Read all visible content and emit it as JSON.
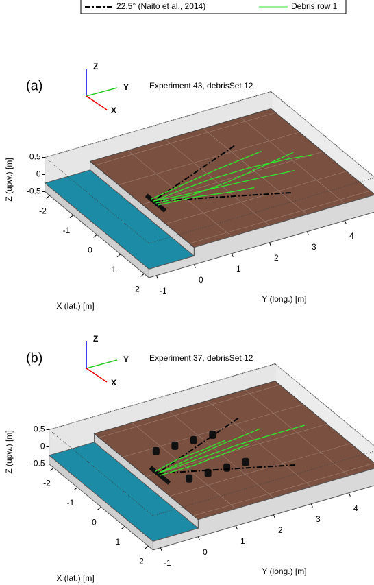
{
  "chart_data": [
    {
      "type": "line3d",
      "panel_label": "(a)",
      "title": "Experiment 43, debrisSet 12",
      "xlabel": "X (lat.) [m]",
      "ylabel": "Y (long.) [m]",
      "zlabel": "Z (upw.) [m]",
      "triad": [
        "Z",
        "Y",
        "X"
      ],
      "xlim": [
        -2.2,
        2.2
      ],
      "ylim": [
        -1.2,
        4.8
      ],
      "zlim": [
        -0.5,
        0.5
      ],
      "xticks": [
        -2,
        -1,
        0,
        1,
        2
      ],
      "yticks": [
        -1,
        0,
        1,
        2,
        3,
        4
      ],
      "zticks": [
        -0.5,
        0,
        0.5
      ],
      "grid": true,
      "series": [
        {
          "name": "22.5° (Naito et al., 2014)",
          "color": "#000000",
          "dash": "dashdot",
          "x": [
            -1.2,
            0,
            1.2
          ],
          "y": [
            3.2,
            0.3,
            3.2
          ]
        },
        {
          "name": "Debris row 1",
          "color": "#2ee82e",
          "x": [
            0,
            -0.1,
            -0.2,
            -0.2,
            -0.1,
            0,
            null,
            0,
            0.1,
            0.2,
            0.3,
            0.4,
            null,
            0.1,
            0.2,
            0.1,
            -0.1,
            -0.3,
            null,
            -0.1,
            -0.3,
            -0.5,
            -0.6,
            -0.7,
            null,
            0.2,
            0.3,
            0.5,
            0.6
          ],
          "y": [
            0.3,
            1,
            2,
            3,
            4,
            4.5,
            null,
            0.3,
            1,
            2,
            3,
            3.8,
            null,
            0.3,
            1.2,
            2.2,
            3.2,
            4.2,
            null,
            0.3,
            1.3,
            2.3,
            3,
            3.6,
            null,
            0.3,
            1.2,
            2,
            2.6
          ]
        }
      ]
    },
    {
      "type": "line3d",
      "panel_label": "(b)",
      "title": "Experiment 37, debrisSet 12",
      "xlabel": "X (lat.) [m]",
      "ylabel": "Y (long.) [m]",
      "zlabel": "Z (upw.) [m]",
      "triad": [
        "Z",
        "Y",
        "X"
      ],
      "xlim": [
        -2.2,
        2.2
      ],
      "ylim": [
        -1.2,
        4.8
      ],
      "zlim": [
        -0.5,
        0.5
      ],
      "xticks": [
        -2,
        -1,
        0,
        1,
        2
      ],
      "yticks": [
        -1,
        0,
        1,
        2,
        3,
        4
      ],
      "zticks": [
        -0.5,
        0,
        0.5
      ],
      "grid": true,
      "obstacles": {
        "x": [
          -0.7,
          -0.7,
          -0.7,
          -0.7,
          0.7,
          0.7,
          0.7,
          0.7
        ],
        "y": [
          0.7,
          1.2,
          1.7,
          2.2,
          0.7,
          1.2,
          1.7,
          2.2
        ]
      },
      "series": [
        {
          "color": "#000000",
          "dash": "dashdot",
          "x": [
            -1.2,
            0,
            1.2
          ],
          "y": [
            3.2,
            0.3,
            3.2
          ]
        },
        {
          "color": "#2ee82e",
          "x": [
            0,
            -0.1,
            -0.2,
            -0.2,
            -0.2,
            null,
            0,
            -0.2,
            -0.4,
            -0.5,
            -0.56,
            null,
            0.1,
            0.1,
            0,
            -0.1,
            null,
            -0.1,
            -0.3,
            -0.4,
            -0.5
          ],
          "y": [
            0.3,
            1.5,
            2.6,
            3.6,
            4.33,
            null,
            0.3,
            1.3,
            2.3,
            3,
            3.38,
            null,
            0.3,
            1.2,
            2,
            2.8,
            null,
            0.3,
            1,
            1.8,
            2.4
          ]
        }
      ]
    }
  ]
}
